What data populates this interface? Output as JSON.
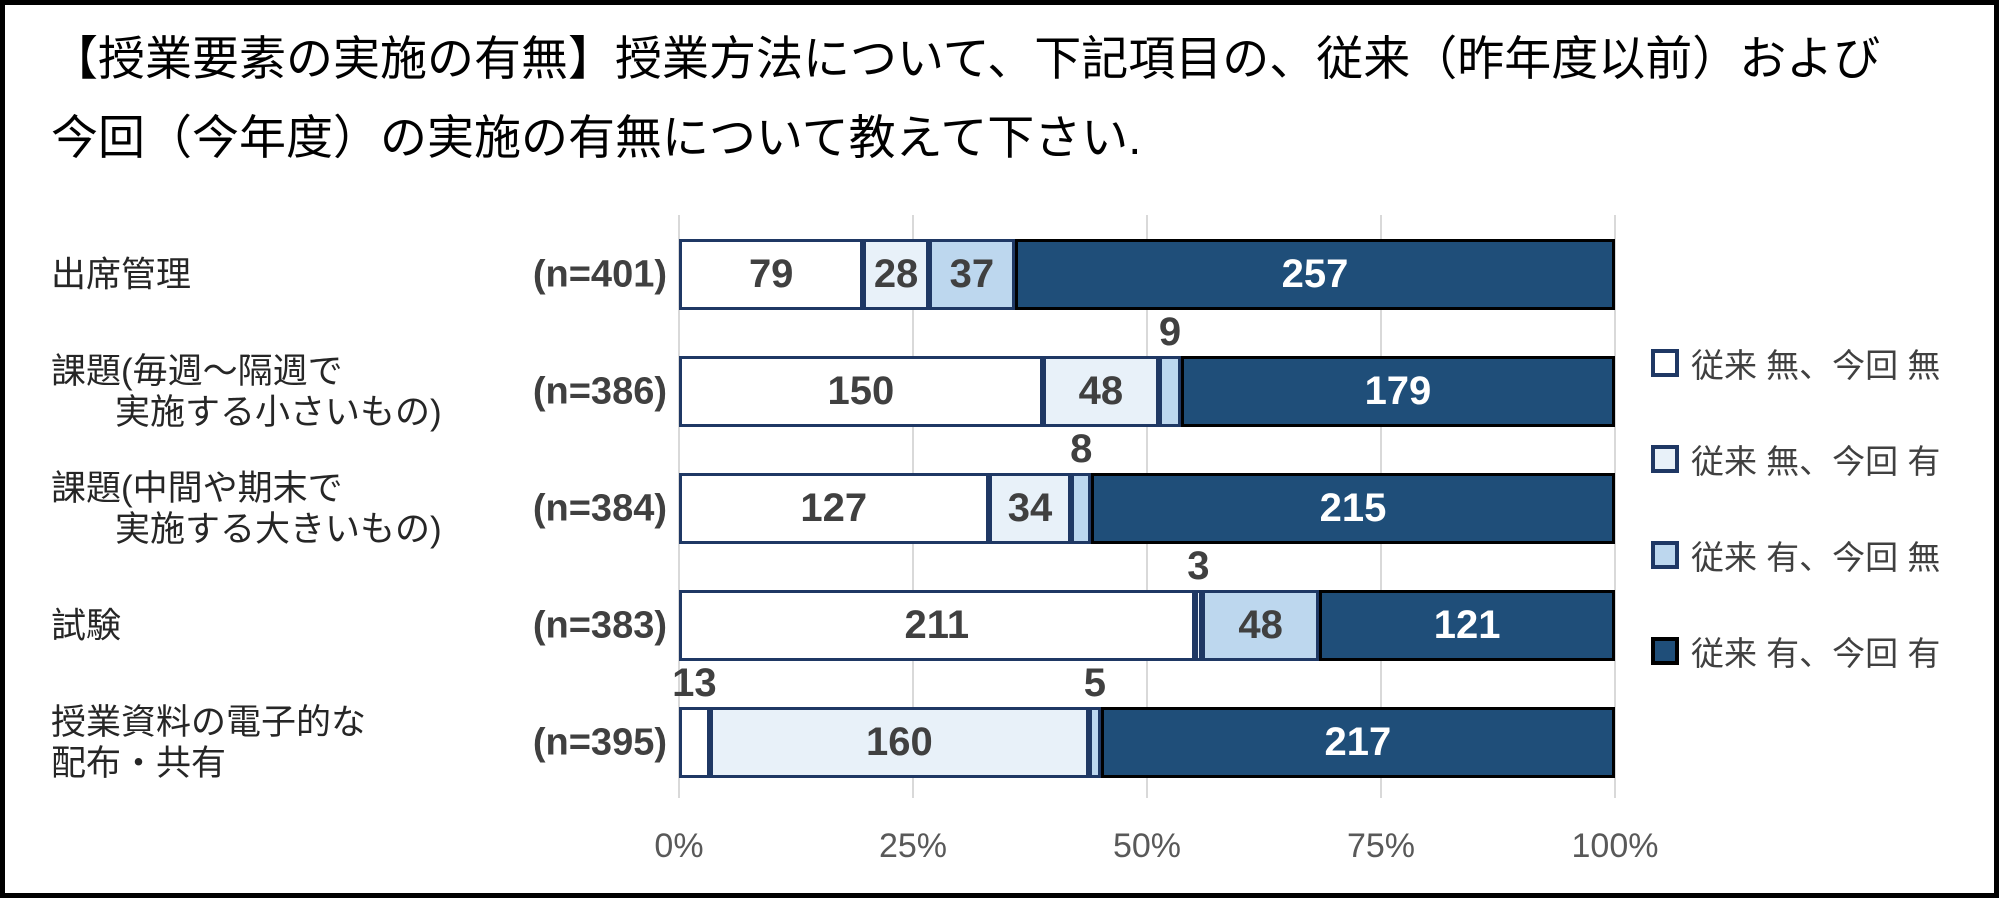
{
  "figure": {
    "title_lines": [
      "【授業要素の実施の有無】授業方法について、下記項目の、従来（昨年度以前）および",
      "今回（今年度）の実施の有無について教えて下さい."
    ]
  },
  "chart_data": {
    "type": "bar",
    "subtype": "horizontal-100%-stacked",
    "title": "【授業要素の実施の有無】授業方法について、下記項目の、従来（昨年度以前）および今回（今年度）の実施の有無について教えて下さい.",
    "xlabel": "",
    "ylabel": "",
    "x_axis": {
      "tick_labels": [
        "0%",
        "25%",
        "50%",
        "75%",
        "100%"
      ],
      "range_percent": [
        0,
        100
      ]
    },
    "grid": true,
    "legend_position": "right",
    "categories": [
      {
        "label_lines": [
          "出席管理"
        ],
        "indent_second_line": false,
        "n_label": "(n=401)",
        "n": 401,
        "outside_label_series": []
      },
      {
        "label_lines": [
          "課題(毎週～隔週で",
          "実施する小さいもの)"
        ],
        "indent_second_line": true,
        "n_label": "(n=386)",
        "n": 386,
        "outside_label_series": [
          2
        ]
      },
      {
        "label_lines": [
          "課題(中間や期末で",
          "実施する大きいもの)"
        ],
        "indent_second_line": true,
        "n_label": "(n=384)",
        "n": 384,
        "outside_label_series": [
          2
        ]
      },
      {
        "label_lines": [
          "試験"
        ],
        "indent_second_line": false,
        "n_label": "(n=383)",
        "n": 383,
        "outside_label_series": [
          1
        ]
      },
      {
        "label_lines": [
          "授業資料の電子的な",
          "配布・共有"
        ],
        "indent_second_line": false,
        "n_label": "(n=395)",
        "n": 395,
        "outside_label_series": [
          0,
          2
        ]
      }
    ],
    "series": [
      {
        "name": "従来 無、今回 無",
        "fill": "#FFFFFF",
        "border": "#1F3864",
        "value_color": "#404040",
        "values": [
          79,
          150,
          127,
          211,
          13
        ]
      },
      {
        "name": "従来 無、今回 有",
        "fill": "#E8F1F9",
        "border": "#1F3864",
        "value_color": "#404040",
        "values": [
          28,
          48,
          34,
          3,
          160
        ]
      },
      {
        "name": "従来 有、今回 無",
        "fill": "#BDD7EE",
        "border": "#1F3864",
        "value_color": "#404040",
        "values": [
          37,
          9,
          8,
          48,
          5
        ]
      },
      {
        "name": "従来 有、今回 有",
        "fill": "#1F4E79",
        "border": "#000000",
        "value_color": "#FFFFFF",
        "values": [
          257,
          179,
          215,
          121,
          217
        ]
      }
    ],
    "colors": {
      "gridline": "#D9D9D9",
      "axis_tick_label": "#595959",
      "outside_value_label": "#404040",
      "figure_border": "#000000"
    }
  }
}
